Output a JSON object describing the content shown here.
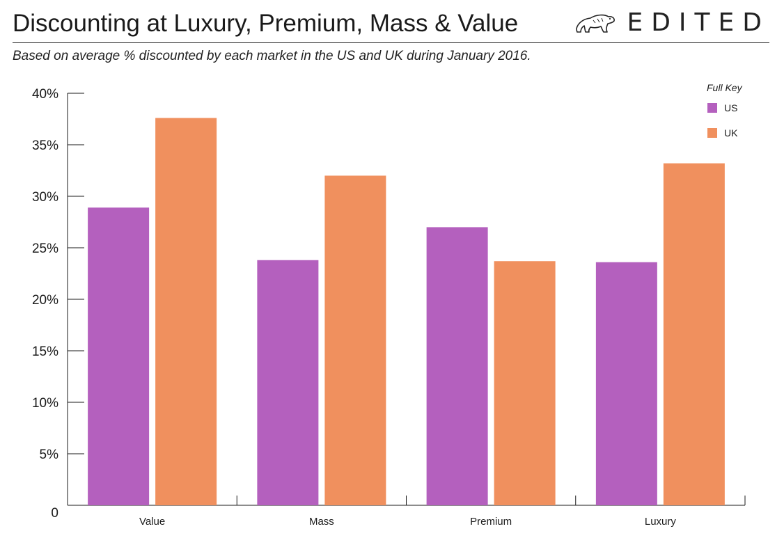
{
  "header": {
    "title": "Discounting at Luxury, Premium, Mass & Value",
    "subtitle": "Based on average % discounted by each market in the US and UK during January 2016.",
    "brand": "EDITED",
    "brand_icon": "polar-bear-icon"
  },
  "chart_data": {
    "type": "bar",
    "categories": [
      "Value",
      "Mass",
      "Premium",
      "Luxury"
    ],
    "series": [
      {
        "name": "US",
        "color": "#b460be",
        "values": [
          28.9,
          23.8,
          27.0,
          23.6
        ]
      },
      {
        "name": "UK",
        "color": "#f0905e",
        "values": [
          37.6,
          32.0,
          23.7,
          33.2
        ]
      }
    ],
    "ylim": [
      0,
      40
    ],
    "yticks": [
      0,
      5,
      10,
      15,
      20,
      25,
      30,
      35,
      40
    ],
    "ytick_labels": [
      "0",
      "5%",
      "10%",
      "15%",
      "20%",
      "25%",
      "30%",
      "35%",
      "40%"
    ],
    "legend": {
      "title": "Full Key",
      "position": "top-right"
    },
    "grid": false
  }
}
